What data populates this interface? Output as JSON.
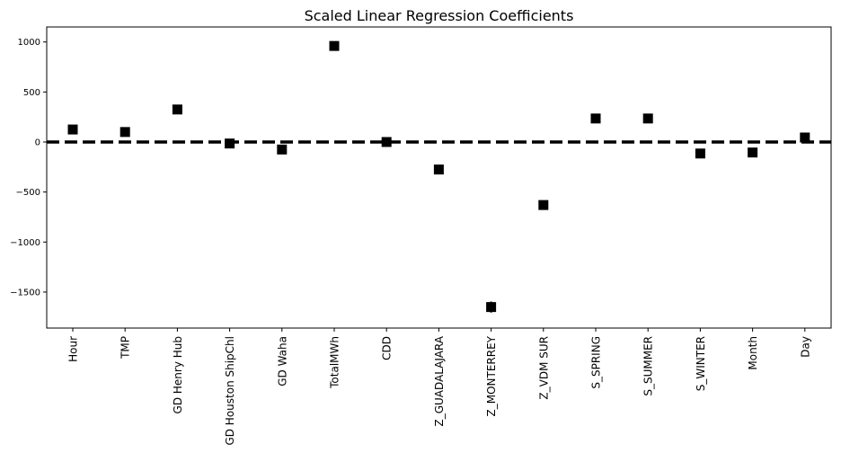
{
  "chart_data": {
    "type": "scatter",
    "title": "Scaled Linear Regression Coefficients",
    "xlabel": "",
    "ylabel": "",
    "categories": [
      "Hour",
      "TMP",
      "GD Henry Hub",
      "GD Houston ShipChl",
      "GD Waha",
      "TotalMWh",
      "CDD",
      "Z_GUADALAJARA",
      "Z_MONTERREY",
      "Z_VDM SUR",
      "S_SPRING",
      "S_SUMMER",
      "S_WINTER",
      "Month",
      "Day"
    ],
    "values": [
      125,
      100,
      325,
      -15,
      -75,
      960,
      0,
      -275,
      -1650,
      -630,
      235,
      235,
      -115,
      -105,
      45
    ],
    "errors": [
      0,
      0,
      0,
      0,
      0,
      0,
      0,
      0,
      55,
      0,
      0,
      0,
      0,
      0,
      0
    ],
    "ylim": [
      -1860,
      1150
    ],
    "yticks": [
      1000,
      500,
      0,
      -500,
      -1000,
      -1500
    ],
    "ytick_labels": [
      "1000",
      "500",
      "0",
      "−500",
      "−1000",
      "−1500"
    ],
    "reference_line": {
      "y": 0,
      "style": "dashed",
      "color": "#000000"
    },
    "marker": "square",
    "marker_color": "#000000",
    "grid": false,
    "legend": "none"
  }
}
